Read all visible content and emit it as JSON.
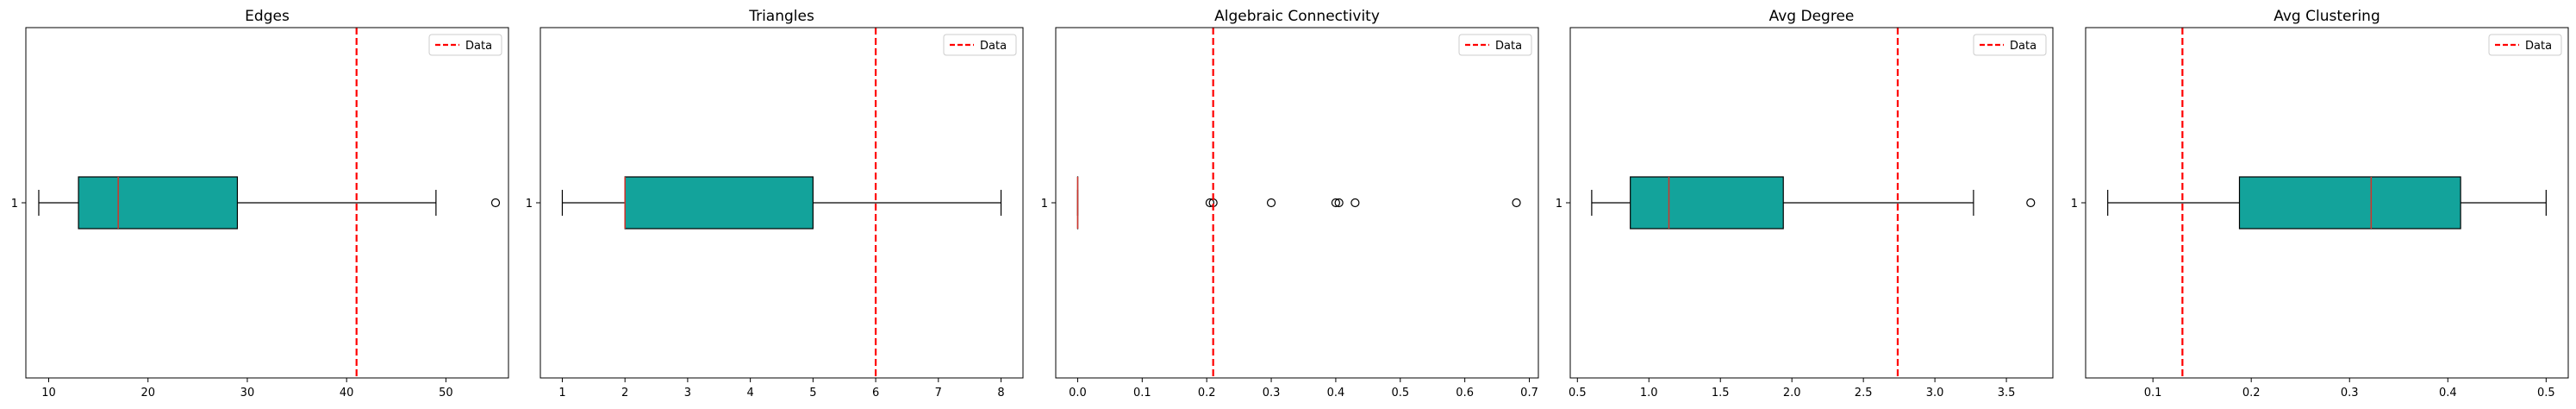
{
  "chart_data": [
    {
      "type": "boxplot",
      "title": "Edges",
      "xlim": [
        7.7,
        56.3
      ],
      "xticks": [
        10,
        20,
        30,
        40,
        50
      ],
      "ytick_label": "1",
      "box": {
        "whisker_low": 9,
        "q1": 13,
        "median": 17,
        "q3": 29,
        "whisker_high": 49
      },
      "outliers": [
        55
      ],
      "reference_line": {
        "x": 41,
        "label": "Data"
      },
      "legend": {
        "label": "Data",
        "loc": "top-right"
      }
    },
    {
      "type": "boxplot",
      "title": "Triangles",
      "xlim": [
        0.65,
        8.35
      ],
      "xticks": [
        1,
        2,
        3,
        4,
        5,
        6,
        7,
        8
      ],
      "ytick_label": "1",
      "box": {
        "whisker_low": 1,
        "q1": 2,
        "median": 2,
        "q3": 5,
        "whisker_high": 8
      },
      "outliers": [],
      "reference_line": {
        "x": 6,
        "label": "Data"
      },
      "legend": {
        "label": "Data",
        "loc": "top-right"
      }
    },
    {
      "type": "boxplot",
      "title": "Algebraic Connectivity",
      "xlim": [
        -0.034,
        0.714
      ],
      "xticks": [
        0.0,
        0.1,
        0.2,
        0.3,
        0.4,
        0.5,
        0.6,
        0.7
      ],
      "xtick_labels": [
        "0.0",
        "0.1",
        "0.2",
        "0.3",
        "0.4",
        "0.5",
        "0.6",
        "0.7"
      ],
      "ytick_label": "1",
      "box": {
        "whisker_low": 0,
        "q1": 0,
        "median": 0,
        "q3": 0,
        "whisker_high": 0
      },
      "outliers": [
        0.205,
        0.21,
        0.3,
        0.4,
        0.405,
        0.43,
        0.68
      ],
      "reference_line": {
        "x": 0.21,
        "label": "Data"
      },
      "legend": {
        "label": "Data",
        "loc": "top-right"
      }
    },
    {
      "type": "boxplot",
      "title": "Avg Degree",
      "xlim": [
        0.45,
        3.825
      ],
      "xticks": [
        0.5,
        1.0,
        1.5,
        2.0,
        2.5,
        3.0,
        3.5
      ],
      "xtick_labels": [
        "0.5",
        "1.0",
        "1.5",
        "2.0",
        "2.5",
        "3.0",
        "3.5"
      ],
      "ytick_label": "1",
      "box": {
        "whisker_low": 0.6,
        "q1": 0.87,
        "median": 1.14,
        "q3": 1.94,
        "whisker_high": 3.27
      },
      "outliers": [
        3.67
      ],
      "reference_line": {
        "x": 2.74,
        "label": "Data"
      },
      "legend": {
        "label": "Data",
        "loc": "top-right"
      }
    },
    {
      "type": "boxplot",
      "title": "Avg Clustering",
      "xlim": [
        0.0315,
        0.5225
      ],
      "xticks": [
        0.1,
        0.2,
        0.3,
        0.4,
        0.5
      ],
      "xtick_labels": [
        "0.1",
        "0.2",
        "0.3",
        "0.4",
        "0.5"
      ],
      "ytick_label": "1",
      "box": {
        "whisker_low": 0.054,
        "q1": 0.188,
        "median": 0.322,
        "q3": 0.413,
        "whisker_high": 0.5
      },
      "outliers": [],
      "reference_line": {
        "x": 0.13,
        "label": "Data"
      },
      "legend": {
        "label": "Data",
        "loc": "top-right"
      }
    }
  ],
  "colors": {
    "box_fill": "#13a39b",
    "median": "#d0342c",
    "reference_line": "#ff0000"
  }
}
